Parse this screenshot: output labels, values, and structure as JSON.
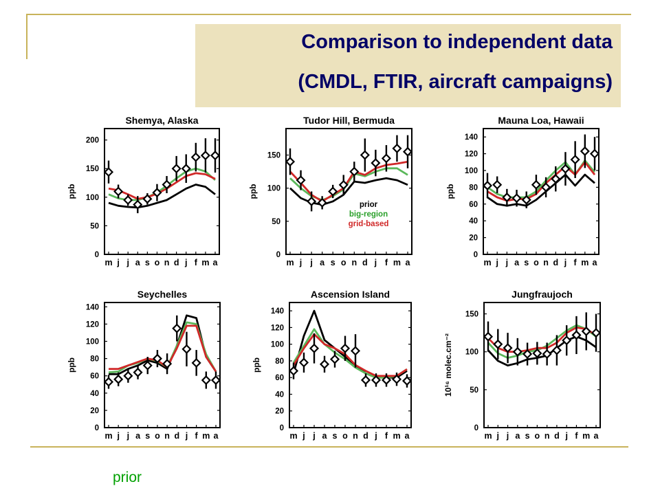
{
  "slide": {
    "title_line1": "Comparison to independent data",
    "title_line2": "(CMDL, FTIR, aircraft campaigns)",
    "footer_label": "prior"
  },
  "colors": {
    "title": "#000066",
    "title_box": "#ece2bd",
    "accent_line": "#c8b35a",
    "prior": "#000000",
    "big_region": "#5bb85b",
    "grid_based": "#d02828",
    "footer_label": "#00a000"
  },
  "legend": {
    "entries": [
      {
        "label": "prior",
        "color": "#000000"
      },
      {
        "label": "big-region",
        "color": "#2aa02a"
      },
      {
        "label": "grid-based",
        "color": "#d02828"
      }
    ]
  },
  "chart_data": [
    {
      "type": "line",
      "title": "Shemya, Alaska",
      "ylabel": "ppb",
      "ylim": [
        0,
        220
      ],
      "yticks": [
        0,
        50,
        100,
        150,
        200
      ],
      "categories": [
        "m",
        "j",
        "j",
        "a",
        "s",
        "o",
        "n",
        "d",
        "j",
        "f",
        "m",
        "a"
      ],
      "series": [
        {
          "name": "prior",
          "color": "#000000",
          "values": [
            90,
            85,
            83,
            82,
            85,
            90,
            95,
            105,
            115,
            122,
            118,
            105
          ]
        },
        {
          "name": "big-region",
          "color": "#5bb85b",
          "values": [
            105,
            98,
            95,
            95,
            100,
            108,
            120,
            133,
            145,
            150,
            145,
            130
          ]
        },
        {
          "name": "grid-based",
          "color": "#d02828",
          "values": [
            115,
            112,
            105,
            97,
            100,
            106,
            115,
            126,
            137,
            142,
            140,
            132
          ]
        }
      ],
      "observations": [
        {
          "value": 144,
          "err": 20
        },
        {
          "value": 110,
          "err": 12
        },
        {
          "value": 95,
          "err": 10
        },
        {
          "value": 87,
          "err": 15
        },
        {
          "value": 97,
          "err": 10
        },
        {
          "value": 108,
          "err": 15
        },
        {
          "value": 122,
          "err": 15
        },
        {
          "value": 150,
          "err": 22
        },
        {
          "value": 150,
          "err": 25
        },
        {
          "value": 170,
          "err": 25
        },
        {
          "value": 173,
          "err": 30
        },
        {
          "value": 173,
          "err": 30
        }
      ]
    },
    {
      "type": "line",
      "title": "Tudor Hill, Bermuda",
      "ylabel": "ppb",
      "ylim": [
        0,
        190
      ],
      "yticks": [
        0,
        50,
        100,
        150
      ],
      "categories": [
        "m",
        "j",
        "j",
        "a",
        "s",
        "o",
        "n",
        "d",
        "j",
        "f",
        "m",
        "a"
      ],
      "series": [
        {
          "name": "prior",
          "color": "#000000",
          "values": [
            100,
            85,
            78,
            75,
            80,
            90,
            110,
            108,
            112,
            115,
            112,
            105
          ]
        },
        {
          "name": "big-region",
          "color": "#5bb85b",
          "values": [
            115,
            100,
            88,
            82,
            88,
            98,
            122,
            118,
            125,
            130,
            130,
            120
          ]
        },
        {
          "name": "grid-based",
          "color": "#d02828",
          "values": [
            125,
            108,
            90,
            80,
            90,
            100,
            125,
            120,
            130,
            135,
            137,
            140
          ]
        }
      ],
      "observations": [
        {
          "value": 140,
          "err": 20
        },
        {
          "value": 112,
          "err": 15
        },
        {
          "value": 80,
          "err": 15
        },
        {
          "value": 78,
          "err": 10
        },
        {
          "value": 95,
          "err": 10
        },
        {
          "value": 105,
          "err": 15
        },
        {
          "value": 125,
          "err": 15
        },
        {
          "value": 150,
          "err": 25
        },
        {
          "value": 138,
          "err": 20
        },
        {
          "value": 145,
          "err": 20
        },
        {
          "value": 160,
          "err": 20
        },
        {
          "value": 155,
          "err": 25
        }
      ]
    },
    {
      "type": "line",
      "title": "Mauna Loa, Hawaii",
      "ylabel": "ppb",
      "ylim": [
        0,
        150
      ],
      "yticks": [
        0,
        20,
        40,
        60,
        80,
        100,
        120,
        140
      ],
      "categories": [
        "m",
        "j",
        "j",
        "a",
        "s",
        "o",
        "n",
        "d",
        "j",
        "f",
        "m",
        "a"
      ],
      "series": [
        {
          "name": "prior",
          "color": "#000000",
          "values": [
            68,
            60,
            58,
            60,
            58,
            65,
            75,
            85,
            95,
            82,
            95,
            85
          ]
        },
        {
          "name": "big-region",
          "color": "#5bb85b",
          "values": [
            80,
            72,
            68,
            68,
            68,
            75,
            88,
            100,
            110,
            95,
            112,
            98
          ]
        },
        {
          "name": "grid-based",
          "color": "#d02828",
          "values": [
            75,
            68,
            64,
            66,
            66,
            72,
            85,
            95,
            105,
            95,
            110,
            95
          ]
        }
      ],
      "observations": [
        {
          "value": 82,
          "err": 15
        },
        {
          "value": 83,
          "err": 10
        },
        {
          "value": 68,
          "err": 10
        },
        {
          "value": 67,
          "err": 10
        },
        {
          "value": 65,
          "err": 10
        },
        {
          "value": 83,
          "err": 12
        },
        {
          "value": 80,
          "err": 12
        },
        {
          "value": 90,
          "err": 15
        },
        {
          "value": 102,
          "err": 20
        },
        {
          "value": 113,
          "err": 22
        },
        {
          "value": 123,
          "err": 20
        },
        {
          "value": 120,
          "err": 20
        }
      ]
    },
    {
      "type": "line",
      "title": "Seychelles",
      "ylabel": "ppb",
      "ylim": [
        0,
        145
      ],
      "yticks": [
        0,
        20,
        40,
        60,
        80,
        100,
        120,
        140
      ],
      "categories": [
        "m",
        "j",
        "j",
        "a",
        "s",
        "o",
        "n",
        "d",
        "j",
        "f",
        "m",
        "a"
      ],
      "series": [
        {
          "name": "prior",
          "color": "#000000",
          "values": [
            62,
            62,
            68,
            72,
            78,
            75,
            68,
            95,
            130,
            127,
            82,
            65
          ]
        },
        {
          "name": "big-region",
          "color": "#5bb85b",
          "values": [
            64,
            65,
            72,
            75,
            80,
            77,
            70,
            95,
            122,
            120,
            85,
            65
          ]
        },
        {
          "name": "grid-based",
          "color": "#d02828",
          "values": [
            68,
            68,
            72,
            76,
            80,
            78,
            70,
            92,
            118,
            118,
            82,
            65
          ]
        }
      ],
      "observations": [
        {
          "value": 53,
          "err": 8
        },
        {
          "value": 56,
          "err": 8
        },
        {
          "value": 60,
          "err": 8
        },
        {
          "value": 64,
          "err": 8
        },
        {
          "value": 72,
          "err": 10
        },
        {
          "value": 80,
          "err": 10
        },
        {
          "value": 74,
          "err": 12
        },
        {
          "value": 115,
          "err": 15
        },
        {
          "value": 91,
          "err": 20
        },
        {
          "value": 75,
          "err": 15
        },
        {
          "value": 55,
          "err": 10
        },
        {
          "value": 55,
          "err": 10
        }
      ]
    },
    {
      "type": "line",
      "title": "Ascension Island",
      "ylabel": "ppb",
      "ylim": [
        0,
        150
      ],
      "yticks": [
        0,
        20,
        40,
        60,
        80,
        100,
        120,
        140
      ],
      "categories": [
        "m",
        "j",
        "j",
        "a",
        "s",
        "o",
        "n",
        "d",
        "j",
        "f",
        "m",
        "a"
      ],
      "series": [
        {
          "name": "prior",
          "color": "#000000",
          "values": [
            65,
            110,
            140,
            105,
            95,
            85,
            75,
            65,
            60,
            60,
            60,
            68
          ]
        },
        {
          "name": "big-region",
          "color": "#5bb85b",
          "values": [
            78,
            98,
            118,
            100,
            90,
            82,
            72,
            65,
            60,
            60,
            62,
            70
          ]
        },
        {
          "name": "grid-based",
          "color": "#d02828",
          "values": [
            75,
            95,
            112,
            100,
            95,
            88,
            75,
            68,
            62,
            62,
            62,
            70
          ]
        }
      ],
      "observations": [
        {
          "value": 68,
          "err": 10
        },
        {
          "value": 78,
          "err": 12
        },
        {
          "value": 95,
          "err": 18
        },
        {
          "value": 76,
          "err": 10
        },
        {
          "value": 82,
          "err": 10
        },
        {
          "value": 95,
          "err": 15
        },
        {
          "value": 92,
          "err": 20
        },
        {
          "value": 57,
          "err": 8
        },
        {
          "value": 57,
          "err": 8
        },
        {
          "value": 57,
          "err": 8
        },
        {
          "value": 58,
          "err": 8
        },
        {
          "value": 56,
          "err": 8
        }
      ]
    },
    {
      "type": "line",
      "title": "Jungfraujoch",
      "ylabel": "10¹⁶ molec.cm⁻²",
      "ylim": [
        0,
        165
      ],
      "yticks": [
        0,
        50,
        100,
        150
      ],
      "categories": [
        "m",
        "j",
        "j",
        "a",
        "s",
        "o",
        "n",
        "d",
        "j",
        "f",
        "m",
        "a"
      ],
      "series": [
        {
          "name": "prior",
          "color": "#000000",
          "values": [
            102,
            88,
            82,
            85,
            90,
            92,
            95,
            105,
            115,
            120,
            115,
            106
          ]
        },
        {
          "name": "big-region",
          "color": "#5bb85b",
          "values": [
            112,
            98,
            92,
            95,
            100,
            102,
            108,
            118,
            128,
            135,
            130,
            120
          ]
        },
        {
          "name": "grid-based",
          "color": "#d02828",
          "values": [
            118,
            105,
            100,
            100,
            102,
            105,
            105,
            112,
            125,
            132,
            130,
            122
          ]
        }
      ],
      "observations": [
        {
          "value": 120,
          "err": 20
        },
        {
          "value": 110,
          "err": 20
        },
        {
          "value": 105,
          "err": 20
        },
        {
          "value": 100,
          "err": 18
        },
        {
          "value": 97,
          "err": 15
        },
        {
          "value": 98,
          "err": 15
        },
        {
          "value": 97,
          "err": 15
        },
        {
          "value": 102,
          "err": 20
        },
        {
          "value": 115,
          "err": 20
        },
        {
          "value": 122,
          "err": 25
        },
        {
          "value": 127,
          "err": 25
        },
        {
          "value": 125,
          "err": 25
        }
      ]
    }
  ]
}
